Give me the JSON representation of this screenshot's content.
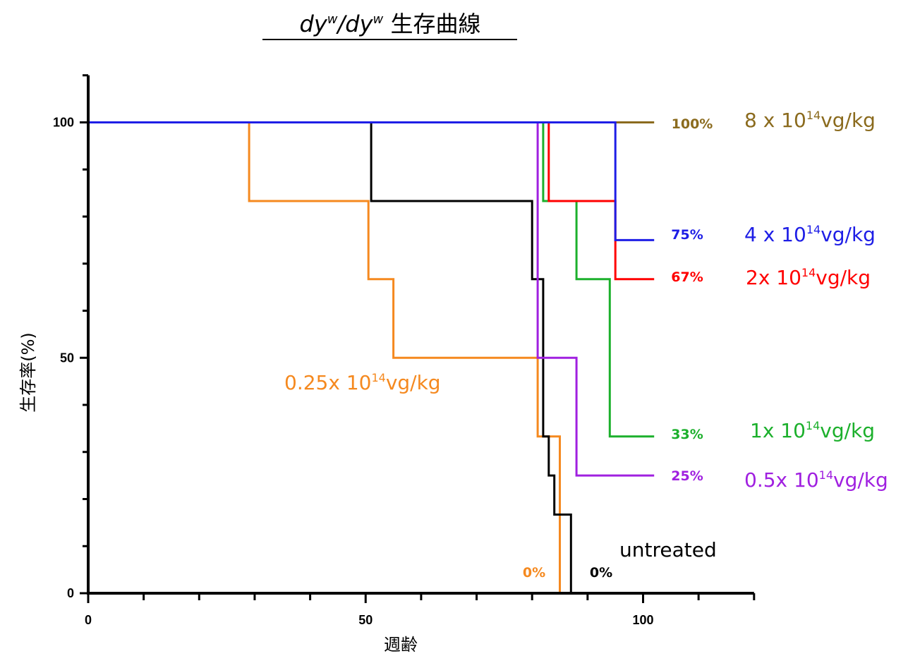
{
  "chart_data": {
    "type": "line",
    "step": true,
    "title_parts": [
      "dy",
      "w",
      "/dy",
      "w",
      "  生存曲線"
    ],
    "xlabel": "週齢",
    "ylabel": "生存率(%)",
    "xlim": [
      0,
      120
    ],
    "ylim": [
      0,
      110
    ],
    "x_ticks": [
      0,
      50,
      100
    ],
    "x_tick_labels": [
      "0",
      "50",
      "100"
    ],
    "y_ticks": [
      0,
      50,
      100
    ],
    "y_tick_labels": [
      "0",
      "50",
      "100"
    ],
    "grid": false,
    "series": [
      {
        "name_parts": [
          "0.25x 10",
          "14",
          "vg/kg"
        ],
        "end_label": "0%",
        "color": "#f5891f",
        "x": [
          0,
          29,
          29,
          50.5,
          50.5,
          55,
          55,
          81,
          81,
          85,
          85
        ],
        "y": [
          100,
          100,
          83.3,
          83.3,
          66.7,
          66.7,
          50,
          50,
          33.3,
          33.3,
          0
        ]
      },
      {
        "name_parts": [
          "untreated"
        ],
        "end_label": "0%",
        "color": "#000000",
        "x": [
          0,
          51,
          51,
          80,
          80,
          82,
          82,
          83,
          83,
          84,
          84,
          87,
          87
        ],
        "y": [
          100,
          100,
          83.3,
          83.3,
          66.7,
          66.7,
          33.3,
          33.3,
          25,
          25,
          16.7,
          16.7,
          0
        ]
      },
      {
        "name_parts": [
          "0.5x 10",
          "14",
          "vg/kg"
        ],
        "end_label": "25%",
        "color": "#a020e0",
        "x": [
          0,
          81,
          81,
          88,
          88,
          102
        ],
        "y": [
          100,
          100,
          50,
          50,
          25,
          25
        ]
      },
      {
        "name_parts": [
          "1x 10",
          "14",
          "vg/kg"
        ],
        "end_label": "33%",
        "color": "#1cb02c",
        "x": [
          0,
          82,
          82,
          88,
          88,
          94,
          94,
          102
        ],
        "y": [
          100,
          100,
          83.3,
          83.3,
          66.7,
          66.7,
          33.3,
          33.3
        ]
      },
      {
        "name_parts": [
          "2x 10",
          "14",
          "vg/kg"
        ],
        "end_label": "67%",
        "color": "#ff0000",
        "x": [
          0,
          83,
          83,
          95,
          95,
          102
        ],
        "y": [
          100,
          100,
          83.3,
          83.3,
          66.7,
          66.7
        ]
      },
      {
        "name_parts": [
          "8 x 10",
          "14",
          "vg/kg"
        ],
        "end_label": "100%",
        "color": "#8b6b1e",
        "x": [
          0,
          102
        ],
        "y": [
          100,
          100
        ]
      },
      {
        "name_parts": [
          "4 x 10",
          "14",
          "vg/kg"
        ],
        "end_label": "75%",
        "color": "#1e1ee6",
        "x": [
          0,
          95,
          95,
          102
        ],
        "y": [
          100,
          100,
          75,
          75
        ]
      }
    ]
  }
}
